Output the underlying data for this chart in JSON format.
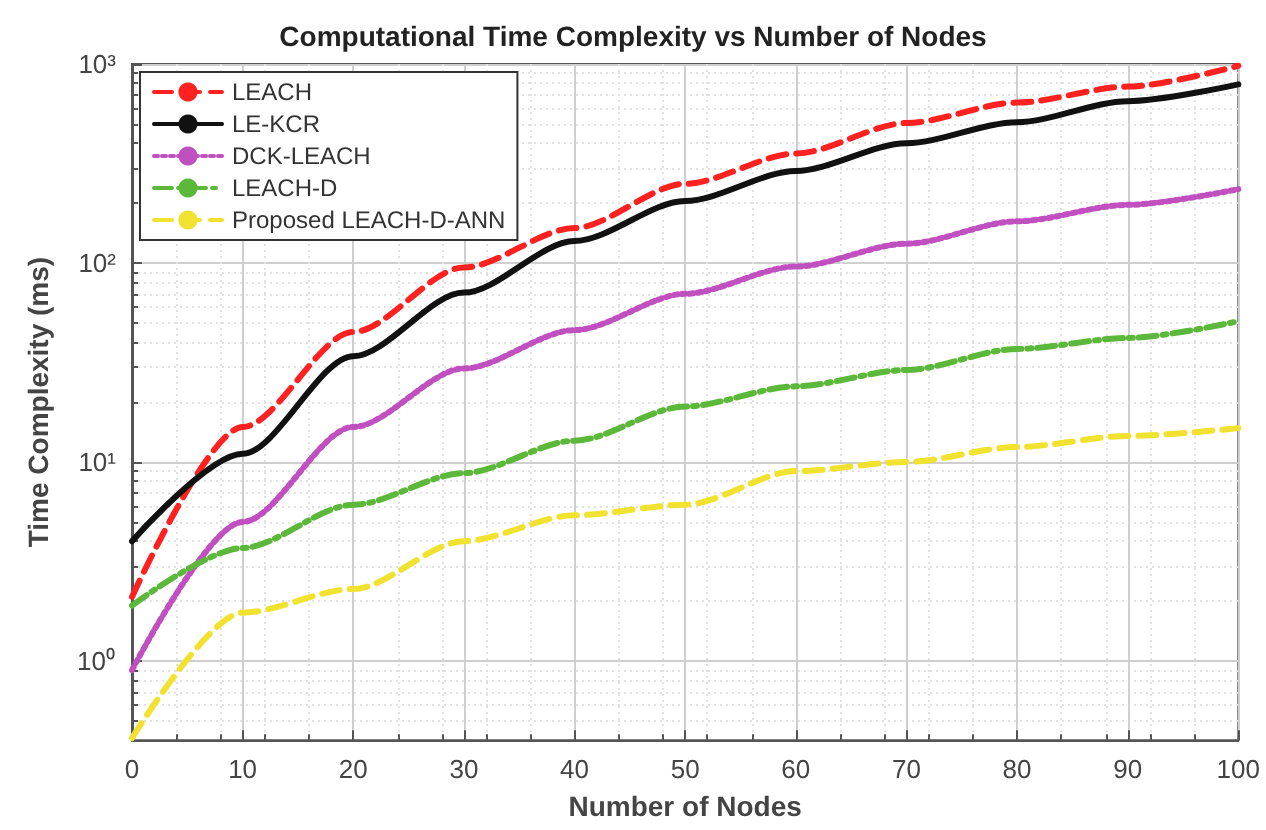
{
  "chart_data": {
    "type": "line",
    "title": "Computational Time Complexity vs Number of Nodes",
    "xlabel": "Number of Nodes",
    "ylabel": "Time Complexity (ms)",
    "x": [
      0,
      10,
      20,
      30,
      40,
      50,
      60,
      70,
      80,
      90,
      100
    ],
    "series": [
      {
        "name": "LEACH",
        "color": "#ff2020",
        "line_style": "dashed",
        "values": [
          2.1,
          15,
          45,
          95,
          150,
          250,
          355,
          505,
          640,
          770,
          980
        ]
      },
      {
        "name": "LE-KCR",
        "color": "#111111",
        "line_style": "solid",
        "values": [
          4,
          11,
          34,
          71,
          129,
          205,
          290,
          400,
          510,
          650,
          790
        ]
      },
      {
        "name": "DCK-LEACH",
        "color": "#c050c0",
        "line_style": "dotted",
        "values": [
          0.9,
          5,
          15,
          29.5,
          46,
          70,
          96,
          125,
          162,
          196,
          235
        ]
      },
      {
        "name": "LEACH-D",
        "color": "#5cb83a",
        "line_style": "dashdot",
        "values": [
          1.9,
          3.7,
          6.1,
          8.8,
          12.8,
          19,
          24,
          29,
          37,
          42,
          51
        ]
      },
      {
        "name": "Proposed LEACH-D-ANN",
        "color": "#f2e230",
        "line_style": "dashed",
        "values": [
          0.41,
          1.75,
          2.3,
          4,
          5.4,
          6.1,
          9,
          10,
          11.9,
          13.5,
          14.8
        ]
      }
    ],
    "xlim": [
      0,
      100
    ],
    "xticks": [
      0,
      10,
      20,
      30,
      40,
      50,
      60,
      70,
      80,
      90,
      100
    ],
    "ylim": [
      0.4,
      1000
    ],
    "yticks": [
      {
        "value": 1,
        "label": "10⁰"
      },
      {
        "value": 10,
        "label": "10¹"
      },
      {
        "value": 100,
        "label": "10²"
      },
      {
        "value": 1000,
        "label": "10³"
      }
    ],
    "log": "y",
    "grid": true,
    "legend": "top left",
    "marker": "none"
  }
}
